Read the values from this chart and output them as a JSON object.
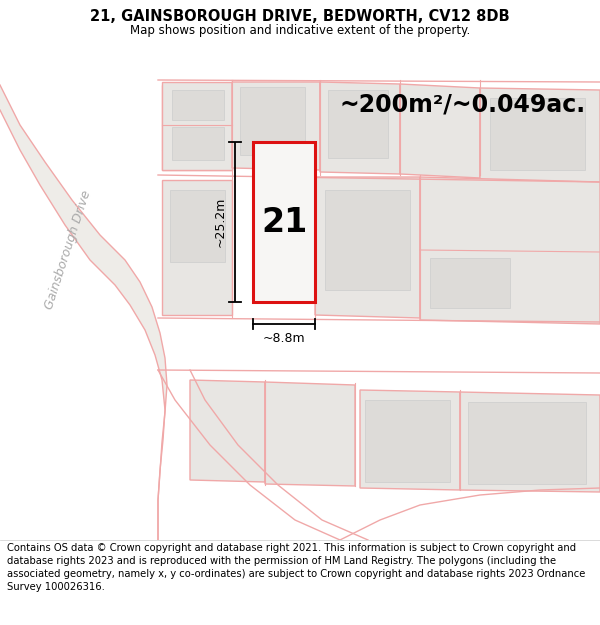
{
  "title": "21, GAINSBOROUGH DRIVE, BEDWORTH, CV12 8DB",
  "subtitle": "Map shows position and indicative extent of the property.",
  "area_label": "~200m²/~0.049ac.",
  "dim_vertical": "~25.2m",
  "dim_horizontal": "~8.8m",
  "property_number": "21",
  "street_label": "Gainsborough Drive",
  "footer": "Contains OS data © Crown copyright and database right 2021. This information is subject to Crown copyright and database rights 2023 and is reproduced with the permission of HM Land Registry. The polygons (including the associated geometry, namely x, y co-ordinates) are subject to Crown copyright and database rights 2023 Ordnance Survey 100026316.",
  "map_bg": "#f7f6f4",
  "prop_fill": "#e8e6e3",
  "outline_color": "#f0a8a8",
  "highlight_color": "#dd1111",
  "road_color": "#e0e0e0",
  "title_fontsize": 10.5,
  "subtitle_fontsize": 8.5,
  "footer_fontsize": 7.2,
  "street_fontsize": 9,
  "area_fontsize": 17,
  "number_fontsize": 24
}
